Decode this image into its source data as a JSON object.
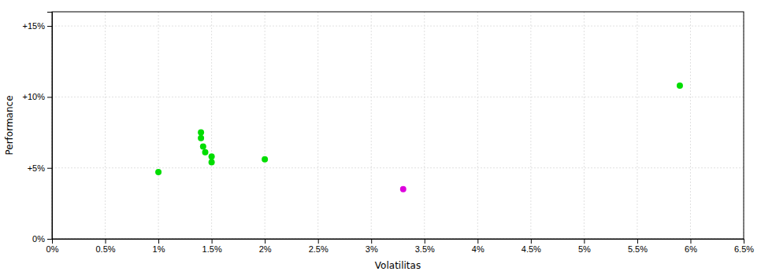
{
  "chart_data": {
    "type": "scatter",
    "x_label": "Volatilitas",
    "y_label": "Performance",
    "xlim": [
      0.0,
      0.065
    ],
    "ylim": [
      0.0,
      0.16
    ],
    "xticks": [
      {
        "value": 0.0,
        "label": "0%"
      },
      {
        "value": 0.005,
        "label": "0.5%"
      },
      {
        "value": 0.01,
        "label": "1%"
      },
      {
        "value": 0.015,
        "label": "1.5%"
      },
      {
        "value": 0.02,
        "label": "2%"
      },
      {
        "value": 0.025,
        "label": "2.5%"
      },
      {
        "value": 0.03,
        "label": "3%"
      },
      {
        "value": 0.035,
        "label": "3.5%"
      },
      {
        "value": 0.04,
        "label": "4%"
      },
      {
        "value": 0.045,
        "label": "4.5%"
      },
      {
        "value": 0.05,
        "label": "5%"
      },
      {
        "value": 0.055,
        "label": "5.5%"
      },
      {
        "value": 0.06,
        "label": "6%"
      },
      {
        "value": 0.065,
        "label": "6.5%"
      }
    ],
    "yticks": [
      {
        "value": 0.0,
        "label": "0%"
      },
      {
        "value": 0.05,
        "label": "+5%"
      },
      {
        "value": 0.1,
        "label": "+10%"
      },
      {
        "value": 0.15,
        "label": "+15%"
      }
    ],
    "grid": true,
    "series": [
      {
        "color": "#00dd00",
        "x": [
          0.01,
          0.014,
          0.014,
          0.0142,
          0.0144,
          0.015,
          0.015,
          0.02,
          0.059
        ],
        "values": [
          0.047,
          0.075,
          0.071,
          0.065,
          0.061,
          0.058,
          0.054,
          0.056,
          0.108
        ]
      },
      {
        "color": "#dd00dd",
        "x": [
          0.033
        ],
        "values": [
          0.035
        ]
      }
    ]
  }
}
